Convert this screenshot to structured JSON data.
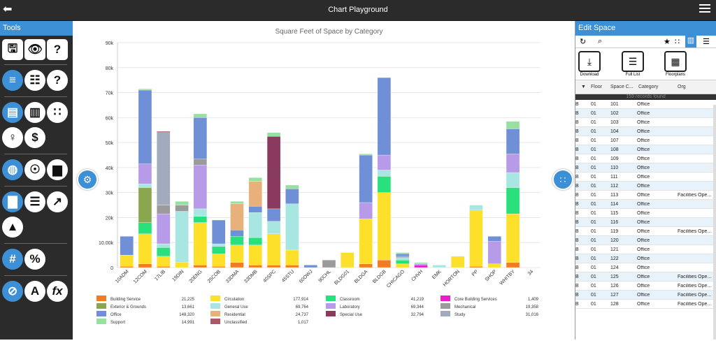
{
  "header": {
    "title": "Chart Playground",
    "back_icon": "arrow-left-icon",
    "menu_icon": "hamburger-icon"
  },
  "tools": {
    "title": "Tools"
  },
  "edit_space": {
    "title": "Edit Space",
    "download_label": "Download",
    "full_list_label": "Full List",
    "floorplans_label": "Floorplans",
    "columns": [
      "Floor",
      "Space C...",
      "Category",
      "Org"
    ],
    "records_found": "159 records found",
    "rows": [
      {
        "b": "B",
        "floor": "01",
        "space": "101",
        "category": "Office",
        "org": ""
      },
      {
        "b": "B",
        "floor": "01",
        "space": "102",
        "category": "Office",
        "org": ""
      },
      {
        "b": "B",
        "floor": "01",
        "space": "103",
        "category": "Office",
        "org": ""
      },
      {
        "b": "B",
        "floor": "01",
        "space": "104",
        "category": "Office",
        "org": ""
      },
      {
        "b": "B",
        "floor": "01",
        "space": "107",
        "category": "Office",
        "org": ""
      },
      {
        "b": "B",
        "floor": "01",
        "space": "108",
        "category": "Office",
        "org": ""
      },
      {
        "b": "B",
        "floor": "01",
        "space": "109",
        "category": "Office",
        "org": ""
      },
      {
        "b": "B",
        "floor": "01",
        "space": "110",
        "category": "Office",
        "org": ""
      },
      {
        "b": "B",
        "floor": "01",
        "space": "111",
        "category": "Office",
        "org": ""
      },
      {
        "b": "B",
        "floor": "01",
        "space": "112",
        "category": "Office",
        "org": ""
      },
      {
        "b": "B",
        "floor": "01",
        "space": "113",
        "category": "Office",
        "org": "Facilities Ope..."
      },
      {
        "b": "B",
        "floor": "01",
        "space": "114",
        "category": "Office",
        "org": ""
      },
      {
        "b": "B",
        "floor": "01",
        "space": "115",
        "category": "Office",
        "org": ""
      },
      {
        "b": "B",
        "floor": "01",
        "space": "116",
        "category": "Office",
        "org": ""
      },
      {
        "b": "B",
        "floor": "01",
        "space": "119",
        "category": "Office",
        "org": "Facilities Ope..."
      },
      {
        "b": "B",
        "floor": "01",
        "space": "120",
        "category": "Office",
        "org": ""
      },
      {
        "b": "B",
        "floor": "01",
        "space": "121",
        "category": "Office",
        "org": ""
      },
      {
        "b": "B",
        "floor": "01",
        "space": "122",
        "category": "Office",
        "org": ""
      },
      {
        "b": "B",
        "floor": "01",
        "space": "124",
        "category": "Office",
        "org": ""
      },
      {
        "b": "B",
        "floor": "01",
        "space": "125",
        "category": "Office",
        "org": "Facilities Ope..."
      },
      {
        "b": "B",
        "floor": "01",
        "space": "126",
        "category": "Office",
        "org": "Facilities Ope..."
      },
      {
        "b": "B",
        "floor": "01",
        "space": "127",
        "category": "Office",
        "org": "Facilities Ope..."
      },
      {
        "b": "B",
        "floor": "01",
        "space": "128",
        "category": "Office",
        "org": "Facilities Ope..."
      }
    ]
  },
  "chart_data": {
    "type": "bar",
    "title": "Square Feet of Space by Category",
    "ylim": [
      0,
      90000
    ],
    "yticks": [
      "0",
      "10.00k",
      "20k",
      "30k",
      "40k",
      "50k",
      "60k",
      "70k",
      "80k",
      "90k"
    ],
    "categories": [
      "10ADM",
      "12COM",
      "17LIB",
      "19DIN",
      "20ENG",
      "25COB",
      "33DMA",
      "33DMB",
      "40SPC",
      "45STU",
      "60OWJ",
      "90CHL",
      "BLDG01",
      "BLDGA",
      "BLDGB",
      "CHICAGO",
      "CHVH",
      "EMK",
      "HORTON",
      "PP",
      "SHOP",
      "WHITBY",
      "34"
    ],
    "colors": {
      "Building Service": "#f47c20",
      "Circulation": "#fde02a",
      "Classroom": "#28e07c",
      "Core Building Services": "#e81ec8",
      "Exterior & Grounds": "#8aa64f",
      "General Use": "#a8e6e2",
      "Laboratory": "#b79ae8",
      "Mechanical": "#9b9b9b",
      "Office": "#6f8fd6",
      "Residential": "#e8b07a",
      "Special Use": "#8a3a5e",
      "Study": "#a2abbd",
      "Support": "#98e0a0",
      "Unclassified": "#b0566a"
    },
    "series": [
      {
        "name": "Building Service",
        "values": [
          500,
          1500,
          500,
          0,
          1000,
          500,
          2000,
          1000,
          1000,
          1000,
          0,
          0,
          0,
          1500,
          3000,
          0,
          0,
          0,
          0,
          500,
          0,
          2000,
          0
        ]
      },
      {
        "name": "Circulation",
        "values": [
          4500,
          12000,
          4000,
          2000,
          17000,
          5000,
          7000,
          8000,
          12500,
          6000,
          0,
          0,
          6000,
          18000,
          27000,
          1500,
          0,
          0,
          4500,
          22500,
          1500,
          19500,
          0
        ]
      },
      {
        "name": "Classroom",
        "values": [
          0,
          4500,
          3500,
          0,
          2500,
          3000,
          3500,
          3000,
          0,
          0,
          0,
          0,
          0,
          0,
          6500,
          1500,
          0,
          0,
          0,
          0,
          0,
          10500,
          0
        ]
      },
      {
        "name": "Core Building Services",
        "values": [
          0,
          0,
          0,
          0,
          0,
          0,
          0,
          0,
          0,
          0,
          0,
          0,
          0,
          0,
          0,
          0,
          1000,
          0,
          0,
          0,
          0,
          0,
          0
        ]
      },
      {
        "name": "Exterior & Grounds",
        "values": [
          0,
          14000,
          0,
          0,
          0,
          0,
          0,
          0,
          0,
          0,
          0,
          0,
          0,
          0,
          0,
          0,
          0,
          0,
          0,
          0,
          0,
          0,
          0
        ]
      },
      {
        "name": "General Use",
        "values": [
          0,
          1500,
          1500,
          20500,
          3000,
          1000,
          0,
          10000,
          5000,
          18500,
          0,
          0,
          0,
          0,
          2500,
          1000,
          0,
          1000,
          0,
          2000,
          0,
          6000,
          0
        ]
      },
      {
        "name": "Laboratory",
        "values": [
          0,
          8000,
          12000,
          0,
          17500,
          0,
          0,
          0,
          0,
          0,
          0,
          0,
          0,
          6500,
          6000,
          0,
          500,
          0,
          0,
          0,
          9000,
          7500,
          0
        ]
      },
      {
        "name": "Mechanical",
        "values": [
          0,
          0,
          3500,
          2500,
          2500,
          0,
          0,
          0,
          0,
          0,
          0,
          3000,
          0,
          0,
          0,
          500,
          0,
          0,
          0,
          0,
          0,
          0,
          0
        ]
      },
      {
        "name": "Office",
        "values": [
          7500,
          29500,
          0,
          0,
          16500,
          9500,
          2500,
          2500,
          5000,
          6000,
          1000,
          0,
          0,
          19000,
          31000,
          1000,
          0,
          0,
          0,
          0,
          2000,
          10000,
          0
        ]
      },
      {
        "name": "Residential",
        "values": [
          0,
          0,
          0,
          0,
          0,
          0,
          10500,
          10000,
          0,
          0,
          0,
          0,
          0,
          0,
          0,
          0,
          0,
          0,
          0,
          0,
          0,
          0,
          0
        ]
      },
      {
        "name": "Special Use",
        "values": [
          0,
          0,
          0,
          0,
          0,
          0,
          0,
          0,
          29000,
          0,
          0,
          0,
          0,
          0,
          0,
          0,
          0,
          0,
          0,
          0,
          0,
          0,
          0
        ]
      },
      {
        "name": "Study",
        "values": [
          0,
          0,
          29000,
          0,
          0,
          0,
          0,
          0,
          0,
          0,
          0,
          0,
          0,
          0,
          0,
          0,
          0,
          0,
          0,
          0,
          0,
          0,
          0
        ]
      },
      {
        "name": "Support",
        "values": [
          0,
          500,
          0,
          1500,
          1500,
          0,
          1000,
          1500,
          1500,
          1500,
          0,
          0,
          0,
          500,
          0,
          500,
          500,
          0,
          0,
          0,
          0,
          3000,
          0
        ]
      },
      {
        "name": "Unclassified",
        "values": [
          0,
          0,
          500,
          0,
          0,
          0,
          0,
          0,
          0,
          0,
          0,
          0,
          0,
          0,
          0,
          0,
          0,
          0,
          0,
          0,
          0,
          0,
          0
        ]
      }
    ],
    "legend": [
      {
        "name": "Building Service",
        "value": "21,225"
      },
      {
        "name": "Circulation",
        "value": "177,914"
      },
      {
        "name": "Classroom",
        "value": "41,219"
      },
      {
        "name": "Core Building Services",
        "value": "1,409"
      },
      {
        "name": "Exterior & Grounds",
        "value": "13,661"
      },
      {
        "name": "General Use",
        "value": "69,764"
      },
      {
        "name": "Laboratory",
        "value": "69,344"
      },
      {
        "name": "Mechanical",
        "value": "19,358"
      },
      {
        "name": "Office",
        "value": "148,320"
      },
      {
        "name": "Residential",
        "value": "24,737"
      },
      {
        "name": "Special Use",
        "value": "32,794"
      },
      {
        "name": "Study",
        "value": "31,016"
      },
      {
        "name": "Support",
        "value": "14,991"
      },
      {
        "name": "Unclassified",
        "value": "1,017"
      }
    ]
  }
}
